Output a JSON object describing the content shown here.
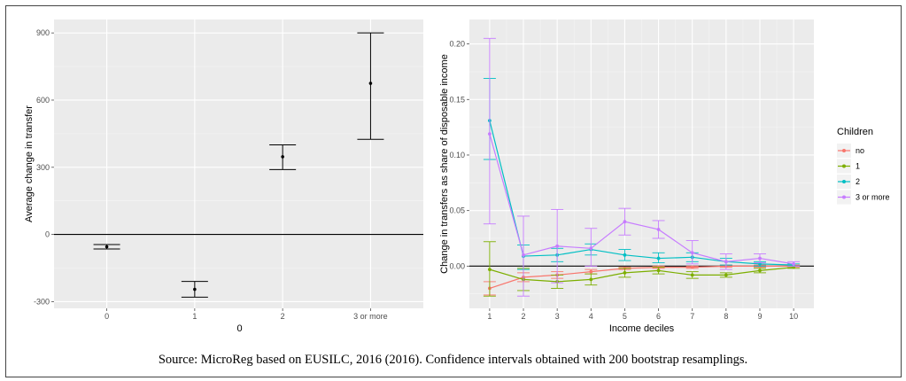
{
  "source_note": "Source: MicroReg based on EUSILC, 2016 (2016). Confidence intervals obtained with 200 bootstrap resamplings.",
  "chart_data": [
    {
      "type": "scatter",
      "subtype": "point-with-errorbars",
      "title": "",
      "xlabel": "0",
      "ylabel": "Average change in transfer",
      "categories": [
        "0",
        "1",
        "2",
        "3 or more"
      ],
      "values": [
        -55,
        -245,
        347,
        675
      ],
      "lower": [
        -65,
        -280,
        290,
        425
      ],
      "upper": [
        -45,
        -210,
        400,
        900
      ],
      "ylim": [
        -330,
        960
      ],
      "yticks": [
        -300,
        0,
        300,
        600,
        900
      ],
      "reference_line_y": 0,
      "point_color": "#000000",
      "grid": true,
      "background": "#ebebeb"
    },
    {
      "type": "line",
      "subtype": "lines-with-errorbars",
      "title": "",
      "xlabel": "Income deciles",
      "ylabel": "Change in transfers as share of disposable income",
      "x": [
        1,
        2,
        3,
        4,
        5,
        6,
        7,
        8,
        9,
        10
      ],
      "xticks": [
        "1",
        "2",
        "3",
        "4",
        "5",
        "6",
        "7",
        "8",
        "9",
        "10"
      ],
      "ylim": [
        -0.038,
        0.222
      ],
      "yticks": [
        0.0,
        0.05,
        0.1,
        0.15,
        0.2
      ],
      "ytick_labels": [
        "0.00",
        "0.05",
        "0.10",
        "0.15",
        "0.20"
      ],
      "reference_line_y": 0,
      "grid": true,
      "background": "#ebebeb",
      "legend": {
        "title": "Children",
        "position": "right"
      },
      "series": [
        {
          "name": "no",
          "color": "#f8766d",
          "values": [
            -0.02,
            -0.01,
            -0.008,
            -0.005,
            -0.002,
            -0.001,
            -0.001,
            0.0,
            0.0,
            0.0
          ],
          "lower": [
            -0.026,
            -0.014,
            -0.011,
            -0.007,
            -0.003,
            -0.002,
            -0.002,
            -0.001,
            -0.001,
            -0.001
          ],
          "upper": [
            -0.014,
            -0.006,
            -0.005,
            -0.003,
            -0.001,
            0.0,
            0.0,
            0.001,
            0.001,
            0.001
          ]
        },
        {
          "name": "1",
          "color": "#7cae00",
          "values": [
            -0.003,
            -0.012,
            -0.014,
            -0.012,
            -0.006,
            -0.004,
            -0.008,
            -0.008,
            -0.004,
            -0.001
          ],
          "lower": [
            -0.027,
            -0.022,
            -0.02,
            -0.017,
            -0.01,
            -0.007,
            -0.011,
            -0.01,
            -0.006,
            -0.002
          ],
          "upper": [
            0.022,
            -0.002,
            -0.008,
            -0.007,
            -0.002,
            -0.001,
            -0.005,
            -0.006,
            -0.002,
            0.0
          ]
        },
        {
          "name": "2",
          "color": "#00bfc4",
          "values": [
            0.131,
            0.009,
            0.01,
            0.015,
            0.01,
            0.007,
            0.008,
            0.004,
            0.002,
            0.001
          ],
          "lower": [
            0.096,
            -0.003,
            0.004,
            0.01,
            0.005,
            0.003,
            0.004,
            0.001,
            0.0,
            0.0
          ],
          "upper": [
            0.169,
            0.019,
            0.016,
            0.02,
            0.015,
            0.012,
            0.012,
            0.007,
            0.004,
            0.002
          ]
        },
        {
          "name": "3 or more",
          "color": "#c77cff",
          "values": [
            0.119,
            0.01,
            0.018,
            0.016,
            0.04,
            0.033,
            0.012,
            0.004,
            0.007,
            0.002
          ],
          "lower": [
            0.038,
            -0.027,
            -0.015,
            0.0,
            0.028,
            0.025,
            0.002,
            -0.003,
            0.003,
            0.0
          ],
          "upper": [
            0.205,
            0.045,
            0.051,
            0.034,
            0.052,
            0.041,
            0.023,
            0.011,
            0.011,
            0.004
          ]
        }
      ]
    }
  ]
}
